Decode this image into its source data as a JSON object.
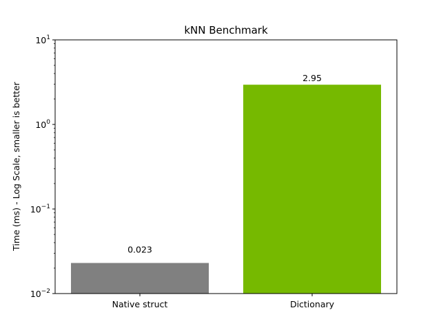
{
  "chart_data": {
    "type": "bar",
    "title": "kNN Benchmark",
    "xlabel": "",
    "ylabel": "Time (ms) - Log Scale, smaller is better",
    "yscale": "log",
    "ylim": [
      0.01,
      10
    ],
    "yticks": [
      {
        "value": 0.01,
        "base": "10",
        "exp": "−2"
      },
      {
        "value": 0.1,
        "base": "10",
        "exp": "−1"
      },
      {
        "value": 1,
        "base": "10",
        "exp": "0"
      },
      {
        "value": 10,
        "base": "10",
        "exp": "1"
      }
    ],
    "categories": [
      "Native struct",
      "Dictionary"
    ],
    "values": [
      0.023,
      2.95
    ],
    "data_labels": [
      "0.023",
      "2.95"
    ],
    "colors": [
      "#808080",
      "#76b900"
    ],
    "grid": false,
    "legend": "none"
  }
}
